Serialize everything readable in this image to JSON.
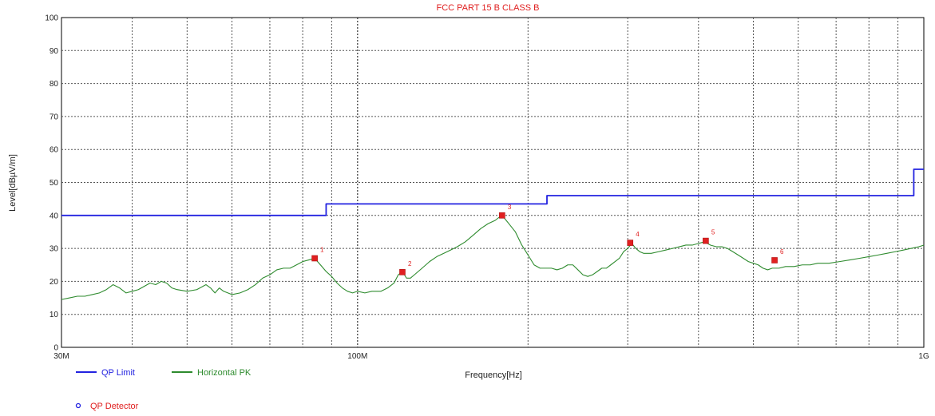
{
  "chart_data": {
    "type": "line",
    "title": "FCC PART 15 B CLASS B",
    "xlabel": "Frequency[Hz]",
    "ylabel": "Level[dBµV/m]",
    "xscale": "log",
    "xlim": [
      30,
      1000
    ],
    "ylim": [
      0,
      100
    ],
    "grid": true,
    "y_ticks": [
      0,
      10,
      20,
      30,
      40,
      50,
      60,
      70,
      80,
      90,
      100
    ],
    "x_tick_labels": [
      {
        "value": 30,
        "label": "30M"
      },
      {
        "value": 100,
        "label": "100M"
      },
      {
        "value": 1000,
        "label": "1G"
      }
    ],
    "series": [
      {
        "name": "QP Limit",
        "color": "#2323e0",
        "style": "step",
        "points": [
          [
            30,
            40
          ],
          [
            88,
            40
          ],
          [
            88,
            43.5
          ],
          [
            216,
            43.5
          ],
          [
            216,
            46
          ],
          [
            960,
            46
          ],
          [
            960,
            54
          ],
          [
            1000,
            54
          ]
        ]
      },
      {
        "name": "Horizontal PK",
        "color": "#2e8b2e",
        "style": "line",
        "points": [
          [
            30,
            14.5
          ],
          [
            31,
            15
          ],
          [
            32,
            15.5
          ],
          [
            33,
            15.5
          ],
          [
            34,
            16
          ],
          [
            35,
            16.5
          ],
          [
            36,
            17.5
          ],
          [
            37,
            19
          ],
          [
            38,
            18
          ],
          [
            39,
            16.5
          ],
          [
            40,
            17
          ],
          [
            41,
            17.5
          ],
          [
            42,
            18.5
          ],
          [
            43,
            19.5
          ],
          [
            44,
            19
          ],
          [
            45,
            20
          ],
          [
            46,
            19.5
          ],
          [
            47,
            18
          ],
          [
            48,
            17.5
          ],
          [
            50,
            17
          ],
          [
            52,
            17.5
          ],
          [
            54,
            19
          ],
          [
            55,
            18
          ],
          [
            56,
            16.5
          ],
          [
            57,
            18
          ],
          [
            58,
            17
          ],
          [
            60,
            16
          ],
          [
            62,
            16.5
          ],
          [
            64,
            17.5
          ],
          [
            66,
            19
          ],
          [
            68,
            21
          ],
          [
            70,
            22
          ],
          [
            72,
            23.5
          ],
          [
            74,
            24
          ],
          [
            76,
            24
          ],
          [
            78,
            25
          ],
          [
            80,
            26
          ],
          [
            82,
            26.5
          ],
          [
            84,
            27
          ],
          [
            86,
            25
          ],
          [
            88,
            23
          ],
          [
            90,
            21.5
          ],
          [
            92,
            19.5
          ],
          [
            94,
            18
          ],
          [
            96,
            17
          ],
          [
            98,
            16.5
          ],
          [
            100,
            17
          ],
          [
            103,
            16.5
          ],
          [
            106,
            17
          ],
          [
            110,
            17
          ],
          [
            113,
            18
          ],
          [
            116,
            19.5
          ],
          [
            118,
            22
          ],
          [
            120,
            23
          ],
          [
            122,
            21
          ],
          [
            124,
            21
          ],
          [
            126,
            22
          ],
          [
            130,
            24
          ],
          [
            134,
            26
          ],
          [
            138,
            27.5
          ],
          [
            142,
            28.5
          ],
          [
            146,
            29.5
          ],
          [
            150,
            30.5
          ],
          [
            155,
            32
          ],
          [
            160,
            34
          ],
          [
            165,
            36
          ],
          [
            170,
            37.5
          ],
          [
            175,
            38.5
          ],
          [
            178,
            39.5
          ],
          [
            180,
            40
          ],
          [
            183,
            38.5
          ],
          [
            186,
            37
          ],
          [
            190,
            35
          ],
          [
            195,
            31
          ],
          [
            200,
            28
          ],
          [
            205,
            25
          ],
          [
            210,
            24
          ],
          [
            215,
            24
          ],
          [
            220,
            24
          ],
          [
            225,
            23.5
          ],
          [
            230,
            24
          ],
          [
            235,
            25
          ],
          [
            240,
            25
          ],
          [
            245,
            23.5
          ],
          [
            250,
            22
          ],
          [
            255,
            21.5
          ],
          [
            260,
            22
          ],
          [
            265,
            23
          ],
          [
            270,
            24
          ],
          [
            275,
            24
          ],
          [
            280,
            25
          ],
          [
            285,
            26
          ],
          [
            290,
            27
          ],
          [
            295,
            29
          ],
          [
            300,
            30
          ],
          [
            305,
            31.5
          ],
          [
            310,
            30
          ],
          [
            315,
            29
          ],
          [
            320,
            28.5
          ],
          [
            330,
            28.5
          ],
          [
            340,
            29
          ],
          [
            350,
            29.5
          ],
          [
            360,
            30
          ],
          [
            370,
            30.5
          ],
          [
            380,
            31
          ],
          [
            390,
            31
          ],
          [
            400,
            31.5
          ],
          [
            410,
            32
          ],
          [
            420,
            31
          ],
          [
            430,
            30.5
          ],
          [
            440,
            30.5
          ],
          [
            450,
            30
          ],
          [
            460,
            29
          ],
          [
            470,
            28
          ],
          [
            480,
            27
          ],
          [
            490,
            26
          ],
          [
            500,
            25.5
          ],
          [
            510,
            25
          ],
          [
            520,
            24
          ],
          [
            530,
            23.5
          ],
          [
            540,
            24
          ],
          [
            555,
            24
          ],
          [
            570,
            24.5
          ],
          [
            590,
            24.5
          ],
          [
            610,
            25
          ],
          [
            630,
            25
          ],
          [
            650,
            25.5
          ],
          [
            680,
            25.5
          ],
          [
            710,
            26
          ],
          [
            740,
            26.5
          ],
          [
            770,
            27
          ],
          [
            800,
            27.5
          ],
          [
            830,
            28
          ],
          [
            860,
            28.5
          ],
          [
            890,
            29
          ],
          [
            920,
            29.5
          ],
          [
            950,
            30
          ],
          [
            980,
            30.5
          ],
          [
            1000,
            31
          ]
        ]
      }
    ],
    "markers": [
      {
        "label": "1",
        "x": 84,
        "y": 27
      },
      {
        "label": "2",
        "x": 120,
        "y": 22.8
      },
      {
        "label": "3",
        "x": 180,
        "y": 40
      },
      {
        "label": "4",
        "x": 303,
        "y": 31.7
      },
      {
        "label": "5",
        "x": 412,
        "y": 32.3
      },
      {
        "label": "6",
        "x": 545,
        "y": 26.4
      }
    ],
    "legend": [
      {
        "name": "QP Limit",
        "color": "#2323e0",
        "kind": "line"
      },
      {
        "name": "Horizontal PK",
        "color": "#2e8b2e",
        "kind": "line"
      },
      {
        "name": "QP Detector",
        "color": "#2323e0",
        "kind": "circle"
      }
    ],
    "legend_position": "bottom-left",
    "title_color": "#e02020",
    "marker_color": "#e02020"
  }
}
